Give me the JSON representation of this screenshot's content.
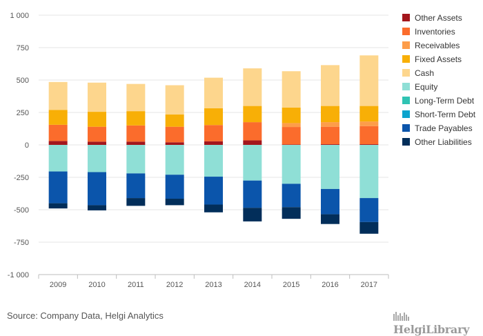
{
  "chart_data": {
    "type": "bar",
    "stacked": true,
    "categories": [
      "2009",
      "2010",
      "2011",
      "2012",
      "2013",
      "2014",
      "2015",
      "2016",
      "2017"
    ],
    "ylim": [
      -1000,
      1000
    ],
    "yticks": [
      1000,
      750,
      500,
      250,
      0,
      -250,
      -500,
      -750,
      -1000
    ],
    "ytick_labels": [
      "1 000",
      "750",
      "500",
      "250",
      "0",
      "-250",
      "-500",
      "-750",
      "-1 000"
    ],
    "grid": true,
    "legend_position": "right",
    "series": [
      {
        "name": "Other Assets",
        "color": "#a3161c",
        "values": [
          30,
          25,
          25,
          20,
          28,
          35,
          3,
          5,
          5
        ]
      },
      {
        "name": "Inventories",
        "color": "#fb6c2c",
        "values": [
          125,
          115,
          125,
          120,
          125,
          140,
          135,
          135,
          140
        ]
      },
      {
        "name": "Receivables",
        "color": "#fd9d4a",
        "values": [
          0,
          0,
          0,
          0,
          0,
          0,
          30,
          35,
          35
        ]
      },
      {
        "name": "Fixed Assets",
        "color": "#f8af06",
        "values": [
          115,
          115,
          110,
          95,
          130,
          125,
          120,
          125,
          120
        ]
      },
      {
        "name": "Cash",
        "color": "#fdd68d",
        "values": [
          215,
          225,
          210,
          225,
          235,
          290,
          280,
          315,
          390
        ]
      },
      {
        "name": "Equity",
        "color": "#8fdfd6",
        "values": [
          -205,
          -210,
          -220,
          -230,
          -245,
          -275,
          -300,
          -340,
          -410
        ]
      },
      {
        "name": "Long-Term Debt",
        "color": "#30c3b3",
        "values": [
          0,
          0,
          0,
          0,
          0,
          0,
          0,
          0,
          0
        ]
      },
      {
        "name": "Short-Term Debt",
        "color": "#0ca3cd",
        "values": [
          0,
          0,
          0,
          0,
          0,
          0,
          0,
          0,
          0
        ]
      },
      {
        "name": "Trade Payables",
        "color": "#0b55ab",
        "values": [
          -245,
          -255,
          -190,
          -185,
          -215,
          -210,
          -180,
          -195,
          -185
        ]
      },
      {
        "name": "Other Liabilities",
        "color": "#022e5a",
        "values": [
          -40,
          -40,
          -60,
          -50,
          -60,
          -105,
          -90,
          -75,
          -90
        ]
      }
    ]
  },
  "source_text": "Source: Company Data, Helgi Analytics",
  "brand_text": "HelgiLibrary"
}
